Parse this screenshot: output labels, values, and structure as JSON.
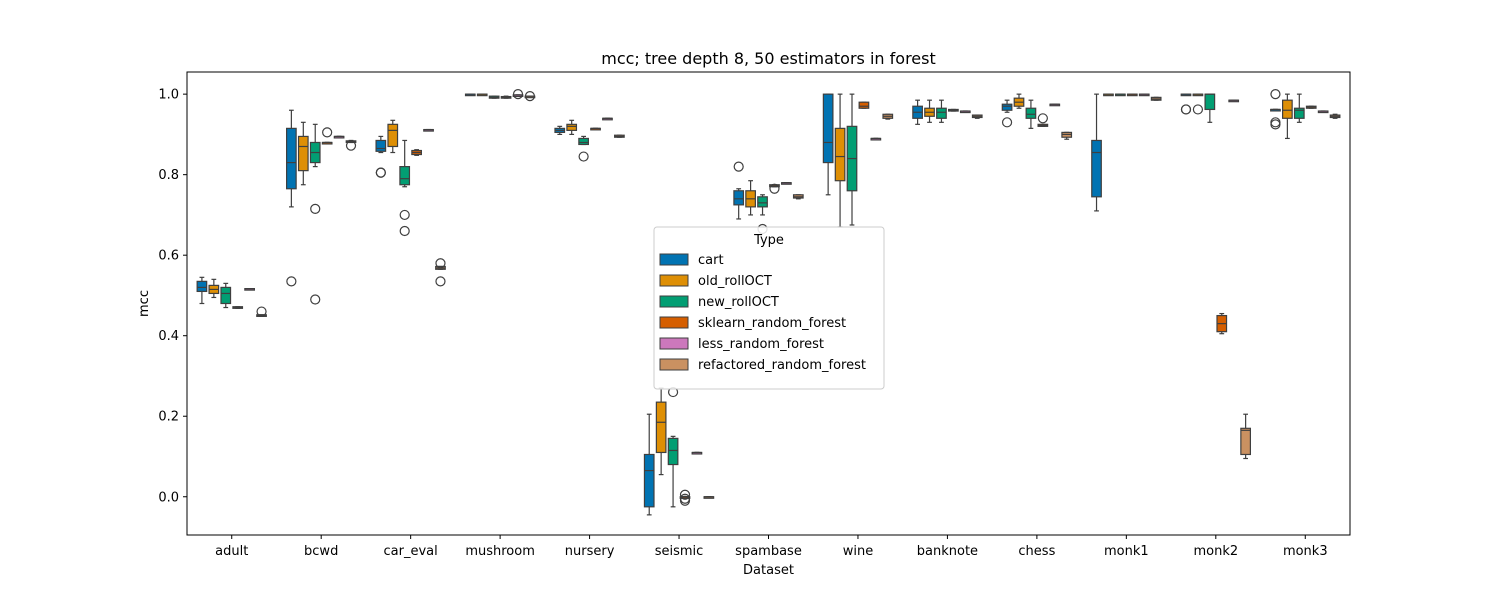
{
  "chart_data": {
    "type": "box",
    "title": "mcc; tree depth 8, 50 estimators in forest",
    "xlabel": "Dataset",
    "ylabel": "mcc",
    "ylim": [
      -0.095,
      1.055
    ],
    "yticks": [
      "0.0",
      "0.2",
      "0.4",
      "0.6",
      "0.8",
      "1.0"
    ],
    "grid": false,
    "legend": {
      "title": "Type",
      "placement": "center"
    },
    "categories": [
      "adult",
      "bcwd",
      "car_eval",
      "mushroom",
      "nursery",
      "seismic",
      "spambase",
      "wine",
      "banknote",
      "chess",
      "monk1",
      "monk2",
      "monk3"
    ],
    "series": [
      {
        "name": "cart",
        "color": "#0173b2",
        "boxes": [
          {
            "whislo": 0.48,
            "q1": 0.51,
            "med": 0.52,
            "q3": 0.535,
            "whishi": 0.545,
            "fliers": []
          },
          {
            "whislo": 0.72,
            "q1": 0.765,
            "med": 0.83,
            "q3": 0.915,
            "whishi": 0.96,
            "fliers": [
              0.535
            ]
          },
          {
            "whislo": 0.855,
            "q1": 0.858,
            "med": 0.865,
            "q3": 0.885,
            "whishi": 0.895,
            "fliers": [
              0.805,
              0.805
            ]
          },
          {
            "whislo": 1.0,
            "q1": 1.0,
            "med": 1.0,
            "q3": 1.0,
            "whishi": 1.0,
            "fliers": []
          },
          {
            "whislo": 0.9,
            "q1": 0.905,
            "med": 0.91,
            "q3": 0.915,
            "whishi": 0.92,
            "fliers": []
          },
          {
            "whislo": -0.045,
            "q1": -0.025,
            "med": 0.065,
            "q3": 0.105,
            "whishi": 0.205,
            "fliers": []
          },
          {
            "whislo": 0.69,
            "q1": 0.725,
            "med": 0.74,
            "q3": 0.76,
            "whishi": 0.765,
            "fliers": [
              0.82
            ]
          },
          {
            "whislo": 0.75,
            "q1": 0.83,
            "med": 0.88,
            "q3": 1.0,
            "whishi": 1.0,
            "fliers": []
          },
          {
            "whislo": 0.925,
            "q1": 0.94,
            "med": 0.955,
            "q3": 0.97,
            "whishi": 0.985,
            "fliers": []
          },
          {
            "whislo": 0.955,
            "q1": 0.96,
            "med": 0.97,
            "q3": 0.975,
            "whishi": 0.985,
            "fliers": [
              0.93
            ]
          },
          {
            "whislo": 0.71,
            "q1": 0.745,
            "med": 0.855,
            "q3": 0.885,
            "whishi": 1.0,
            "fliers": []
          },
          {
            "whislo": 1.0,
            "q1": 1.0,
            "med": 1.0,
            "q3": 1.0,
            "whishi": 1.0,
            "fliers": [
              0.962,
              0.962
            ]
          },
          {
            "whislo": 0.962,
            "q1": 0.962,
            "med": 0.962,
            "q3": 0.962,
            "whishi": 0.962,
            "fliers": [
              1.0,
              0.93,
              0.925
            ]
          }
        ]
      },
      {
        "name": "old_rollOCT",
        "color": "#de8f05",
        "boxes": [
          {
            "whislo": 0.495,
            "q1": 0.505,
            "med": 0.515,
            "q3": 0.525,
            "whishi": 0.54,
            "fliers": []
          },
          {
            "whislo": 0.775,
            "q1": 0.81,
            "med": 0.87,
            "q3": 0.895,
            "whishi": 0.93,
            "fliers": []
          },
          {
            "whislo": 0.855,
            "q1": 0.87,
            "med": 0.91,
            "q3": 0.925,
            "whishi": 0.935,
            "fliers": []
          },
          {
            "whislo": 1.0,
            "q1": 1.0,
            "med": 1.0,
            "q3": 1.0,
            "whishi": 1.0,
            "fliers": []
          },
          {
            "whislo": 0.9,
            "q1": 0.91,
            "med": 0.92,
            "q3": 0.925,
            "whishi": 0.935,
            "fliers": []
          },
          {
            "whislo": 0.055,
            "q1": 0.11,
            "med": 0.185,
            "q3": 0.235,
            "whishi": 0.27,
            "fliers": []
          },
          {
            "whislo": 0.7,
            "q1": 0.72,
            "med": 0.74,
            "q3": 0.76,
            "whishi": 0.785,
            "fliers": []
          },
          {
            "whislo": 0.67,
            "q1": 0.785,
            "med": 0.845,
            "q3": 0.915,
            "whishi": 1.0,
            "fliers": []
          },
          {
            "whislo": 0.93,
            "q1": 0.945,
            "med": 0.955,
            "q3": 0.965,
            "whishi": 0.985,
            "fliers": []
          },
          {
            "whislo": 0.965,
            "q1": 0.97,
            "med": 0.98,
            "q3": 0.99,
            "whishi": 1.0,
            "fliers": []
          },
          {
            "whislo": 1.0,
            "q1": 1.0,
            "med": 1.0,
            "q3": 1.0,
            "whishi": 1.0,
            "fliers": []
          },
          {
            "whislo": 1.0,
            "q1": 1.0,
            "med": 1.0,
            "q3": 1.0,
            "whishi": 1.0,
            "fliers": [
              0.962
            ]
          },
          {
            "whislo": 0.89,
            "q1": 0.94,
            "med": 0.96,
            "q3": 0.985,
            "whishi": 1.0,
            "fliers": []
          }
        ]
      },
      {
        "name": "new_rollOCT",
        "color": "#029e73",
        "boxes": [
          {
            "whislo": 0.47,
            "q1": 0.48,
            "med": 0.505,
            "q3": 0.52,
            "whishi": 0.53,
            "fliers": []
          },
          {
            "whislo": 0.82,
            "q1": 0.83,
            "med": 0.855,
            "q3": 0.88,
            "whishi": 0.925,
            "fliers": [
              0.715,
              0.49
            ]
          },
          {
            "whislo": 0.77,
            "q1": 0.775,
            "med": 0.79,
            "q3": 0.82,
            "whishi": 0.885,
            "fliers": [
              0.7,
              0.66
            ]
          },
          {
            "whislo": 0.99,
            "q1": 0.99,
            "med": 0.992,
            "q3": 0.995,
            "whishi": 0.995,
            "fliers": []
          },
          {
            "whislo": 0.875,
            "q1": 0.875,
            "med": 0.88,
            "q3": 0.89,
            "whishi": 0.895,
            "fliers": [
              0.845
            ]
          },
          {
            "whislo": -0.025,
            "q1": 0.08,
            "med": 0.115,
            "q3": 0.145,
            "whishi": 0.15,
            "fliers": [
              0.26
            ]
          },
          {
            "whislo": 0.7,
            "q1": 0.72,
            "med": 0.73,
            "q3": 0.745,
            "whishi": 0.75,
            "fliers": [
              0.665
            ]
          },
          {
            "whislo": 0.675,
            "q1": 0.76,
            "med": 0.84,
            "q3": 0.92,
            "whishi": 1.0,
            "fliers": []
          },
          {
            "whislo": 0.93,
            "q1": 0.94,
            "med": 0.955,
            "q3": 0.965,
            "whishi": 0.985,
            "fliers": []
          },
          {
            "whislo": 0.915,
            "q1": 0.94,
            "med": 0.95,
            "q3": 0.965,
            "whishi": 0.985,
            "fliers": []
          },
          {
            "whislo": 1.0,
            "q1": 1.0,
            "med": 1.0,
            "q3": 1.0,
            "whishi": 1.0,
            "fliers": []
          },
          {
            "whislo": 0.93,
            "q1": 0.962,
            "med": 1.0,
            "q3": 1.0,
            "whishi": 1.0,
            "fliers": []
          },
          {
            "whislo": 0.93,
            "q1": 0.94,
            "med": 0.96,
            "q3": 0.965,
            "whishi": 1.0,
            "fliers": []
          }
        ]
      },
      {
        "name": "sklearn_random_forest",
        "color": "#d55e00",
        "boxes": [
          {
            "whislo": 0.468,
            "q1": 0.468,
            "med": 0.47,
            "q3": 0.472,
            "whishi": 0.472,
            "fliers": []
          },
          {
            "whislo": 0.88,
            "q1": 0.88,
            "med": 0.88,
            "q3": 0.88,
            "whishi": 0.88,
            "fliers": [
              0.905
            ]
          },
          {
            "whislo": 0.848,
            "q1": 0.85,
            "med": 0.855,
            "q3": 0.86,
            "whishi": 0.862,
            "fliers": []
          },
          {
            "whislo": 0.99,
            "q1": 0.99,
            "med": 0.992,
            "q3": 0.994,
            "whishi": 0.995,
            "fliers": []
          },
          {
            "whislo": 0.915,
            "q1": 0.915,
            "med": 0.915,
            "q3": 0.915,
            "whishi": 0.915,
            "fliers": []
          },
          {
            "whislo": 0.0,
            "q1": 0.0,
            "med": 0.0,
            "q3": 0.0,
            "whishi": 0.0,
            "fliers": [
              -0.005,
              0.005,
              -0.01
            ]
          },
          {
            "whislo": 0.77,
            "q1": 0.77,
            "med": 0.772,
            "q3": 0.775,
            "whishi": 0.775,
            "fliers": [
              0.765
            ]
          },
          {
            "whislo": 0.965,
            "q1": 0.965,
            "med": 0.97,
            "q3": 0.98,
            "whishi": 0.98,
            "fliers": []
          },
          {
            "whislo": 0.958,
            "q1": 0.958,
            "med": 0.96,
            "q3": 0.962,
            "whishi": 0.962,
            "fliers": []
          },
          {
            "whislo": 0.92,
            "q1": 0.92,
            "med": 0.922,
            "q3": 0.925,
            "whishi": 0.925,
            "fliers": [
              0.94
            ]
          },
          {
            "whislo": 1.0,
            "q1": 1.0,
            "med": 1.0,
            "q3": 1.0,
            "whishi": 1.0,
            "fliers": []
          },
          {
            "whislo": 0.405,
            "q1": 0.41,
            "med": 0.43,
            "q3": 0.45,
            "whishi": 0.455,
            "fliers": []
          },
          {
            "whislo": 0.965,
            "q1": 0.965,
            "med": 0.968,
            "q3": 0.97,
            "whishi": 0.97,
            "fliers": []
          }
        ]
      },
      {
        "name": "less_random_forest",
        "color": "#cc78bc",
        "boxes": [
          {
            "whislo": 0.517,
            "q1": 0.517,
            "med": 0.517,
            "q3": 0.517,
            "whishi": 0.517,
            "fliers": []
          },
          {
            "whislo": 0.895,
            "q1": 0.895,
            "med": 0.895,
            "q3": 0.895,
            "whishi": 0.895,
            "fliers": []
          },
          {
            "whislo": 0.912,
            "q1": 0.912,
            "med": 0.912,
            "q3": 0.912,
            "whishi": 0.912,
            "fliers": []
          },
          {
            "whislo": 0.998,
            "q1": 0.998,
            "med": 0.998,
            "q3": 0.998,
            "whishi": 0.998,
            "fliers": [
              1.0
            ]
          },
          {
            "whislo": 0.94,
            "q1": 0.94,
            "med": 0.94,
            "q3": 0.94,
            "whishi": 0.94,
            "fliers": []
          },
          {
            "whislo": 0.11,
            "q1": 0.11,
            "med": 0.11,
            "q3": 0.11,
            "whishi": 0.11,
            "fliers": []
          },
          {
            "whislo": 0.78,
            "q1": 0.78,
            "med": 0.78,
            "q3": 0.78,
            "whishi": 0.78,
            "fliers": []
          },
          {
            "whislo": 0.89,
            "q1": 0.89,
            "med": 0.89,
            "q3": 0.89,
            "whishi": 0.89,
            "fliers": []
          },
          {
            "whislo": 0.958,
            "q1": 0.958,
            "med": 0.958,
            "q3": 0.958,
            "whishi": 0.958,
            "fliers": []
          },
          {
            "whislo": 0.975,
            "q1": 0.975,
            "med": 0.975,
            "q3": 0.975,
            "whishi": 0.975,
            "fliers": []
          },
          {
            "whislo": 1.0,
            "q1": 1.0,
            "med": 1.0,
            "q3": 1.0,
            "whishi": 1.0,
            "fliers": []
          },
          {
            "whislo": 0.985,
            "q1": 0.985,
            "med": 0.985,
            "q3": 0.985,
            "whishi": 0.985,
            "fliers": []
          },
          {
            "whislo": 0.958,
            "q1": 0.958,
            "med": 0.958,
            "q3": 0.958,
            "whishi": 0.958,
            "fliers": []
          }
        ]
      },
      {
        "name": "refactored_random_forest",
        "color": "#ca9161",
        "boxes": [
          {
            "whislo": 0.448,
            "q1": 0.448,
            "med": 0.45,
            "q3": 0.452,
            "whishi": 0.452,
            "fliers": [
              0.46
            ]
          },
          {
            "whislo": 0.88,
            "q1": 0.88,
            "med": 0.882,
            "q3": 0.884,
            "whishi": 0.885,
            "fliers": [
              0.872
            ]
          },
          {
            "whislo": 0.565,
            "q1": 0.565,
            "med": 0.568,
            "q3": 0.572,
            "whishi": 0.572,
            "fliers": [
              0.58,
              0.535
            ]
          },
          {
            "whislo": 0.995,
            "q1": 0.995,
            "med": 0.995,
            "q3": 0.995,
            "whishi": 0.995,
            "fliers": [
              0.995
            ]
          },
          {
            "whislo": 0.893,
            "q1": 0.893,
            "med": 0.895,
            "q3": 0.898,
            "whishi": 0.898,
            "fliers": []
          },
          {
            "whislo": 0.0,
            "q1": 0.0,
            "med": 0.0,
            "q3": 0.0,
            "whishi": 0.0,
            "fliers": []
          },
          {
            "whislo": 0.74,
            "q1": 0.742,
            "med": 0.745,
            "q3": 0.75,
            "whishi": 0.75,
            "fliers": []
          },
          {
            "whislo": 0.938,
            "q1": 0.94,
            "med": 0.945,
            "q3": 0.95,
            "whishi": 0.95,
            "fliers": []
          },
          {
            "whislo": 0.94,
            "q1": 0.942,
            "med": 0.945,
            "q3": 0.948,
            "whishi": 0.948,
            "fliers": []
          },
          {
            "whislo": 0.888,
            "q1": 0.893,
            "med": 0.9,
            "q3": 0.905,
            "whishi": 0.905,
            "fliers": []
          },
          {
            "whislo": 0.985,
            "q1": 0.985,
            "med": 0.988,
            "q3": 0.992,
            "whishi": 0.992,
            "fliers": []
          },
          {
            "whislo": 0.095,
            "q1": 0.105,
            "med": 0.165,
            "q3": 0.17,
            "whishi": 0.205,
            "fliers": []
          },
          {
            "whislo": 0.94,
            "q1": 0.942,
            "med": 0.945,
            "q3": 0.948,
            "whishi": 0.95,
            "fliers": []
          }
        ]
      }
    ]
  }
}
